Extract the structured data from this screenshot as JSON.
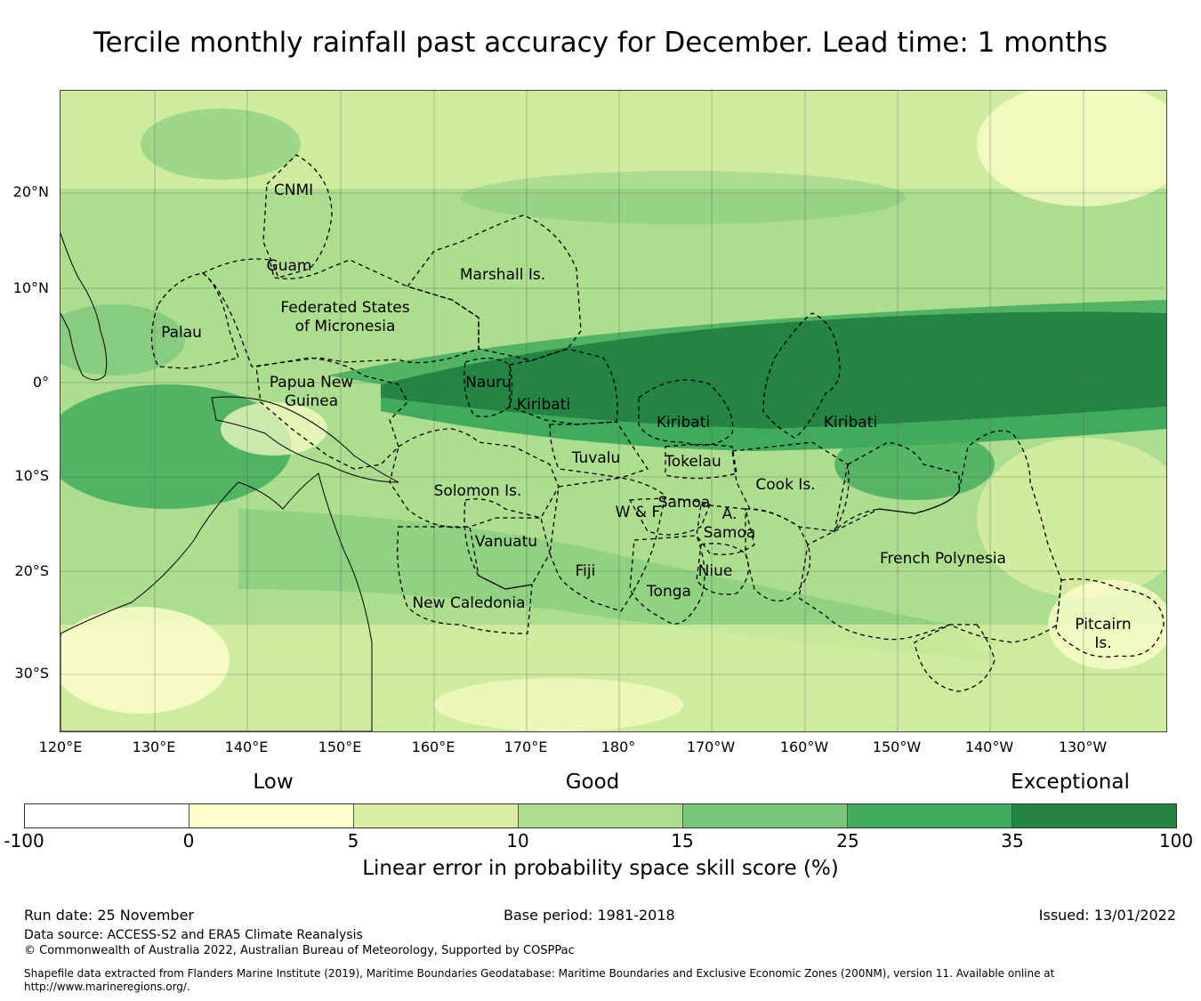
{
  "title": "Tercile monthly rainfall past accuracy for December. Lead time: 1 months",
  "map": {
    "lat_labels": [
      "20°N",
      "10°N",
      "0°",
      "10°S",
      "20°S",
      "30°S"
    ],
    "lon_labels": [
      "120°E",
      "130°E",
      "140°E",
      "150°E",
      "160°E",
      "170°E",
      "180°",
      "170°W",
      "160°W",
      "150°W",
      "140°W",
      "130°W"
    ],
    "regions": [
      {
        "name": "CNMI"
      },
      {
        "name": "Guam"
      },
      {
        "name": "Marshall Is."
      },
      {
        "name": "Federated States"
      },
      {
        "name": "of Micronesia"
      },
      {
        "name": "Palau"
      },
      {
        "name": "Papua New"
      },
      {
        "name": "Guinea"
      },
      {
        "name": "Nauru"
      },
      {
        "name": "Kiribati"
      },
      {
        "name": "Kiribati"
      },
      {
        "name": "Kiribati"
      },
      {
        "name": "Tuvalu"
      },
      {
        "name": "Tokelau"
      },
      {
        "name": "Cook Is."
      },
      {
        "name": "Solomon Is."
      },
      {
        "name": "Samoa"
      },
      {
        "name": "W & F"
      },
      {
        "name": "A."
      },
      {
        "name": "Samoa"
      },
      {
        "name": "Vanuatu"
      },
      {
        "name": "Fiji"
      },
      {
        "name": "Niue"
      },
      {
        "name": "Tonga"
      },
      {
        "name": "French Polynesia"
      },
      {
        "name": "New Caledonia"
      },
      {
        "name": "Pitcairn"
      },
      {
        "name": "Is."
      }
    ]
  },
  "legend": {
    "categories": [
      "Low",
      "Good",
      "Exceptional"
    ],
    "colors": [
      "#ffffff",
      "#ffffcc",
      "#d9f0a3",
      "#addd8e",
      "#78c679",
      "#41ab5d",
      "#238443"
    ],
    "ticks": [
      "-100",
      "0",
      "5",
      "10",
      "15",
      "25",
      "35",
      "100"
    ],
    "title": "Linear error in probability space skill score (%)"
  },
  "footer": {
    "run_date": "Run date: 25 November",
    "base_period": "Base period: 1981-2018",
    "issued": "Issued: 13/01/2022",
    "data_source": "Data source: ACCESS-S2 and ERA5 Climate Reanalysis",
    "copyright": "© Commonwealth of Australia 2022, Australian Bureau of Meteorology, Supported by COSPPac",
    "shapefile_1": "Shapefile data extracted from Flanders Marine Institute (2019), Maritime Boundaries Geodatabase: Maritime Boundaries and Exclusive Economic Zones (200NM), version 11. Available online at",
    "shapefile_2": "http://www.marineregions.org/."
  }
}
